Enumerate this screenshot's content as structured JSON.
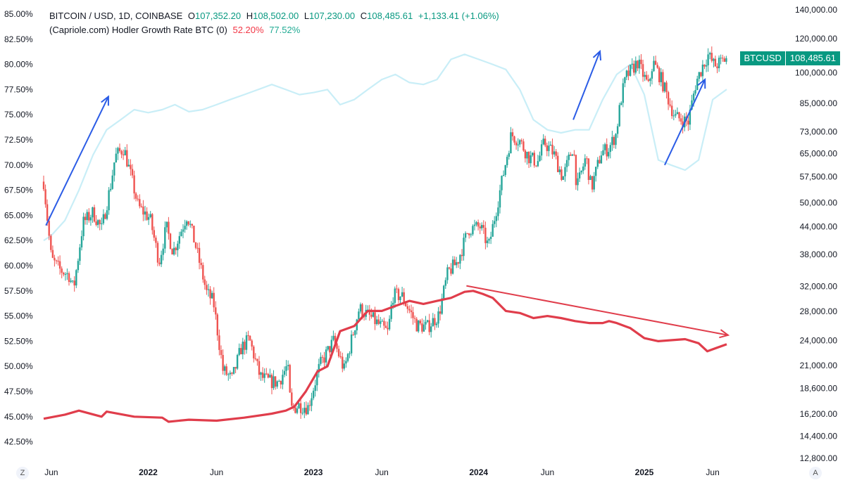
{
  "legend": {
    "symbol_line": "BITCOIN / USD, 1D, COINBASE",
    "open_label": "O",
    "open": "107,352.20",
    "high_label": "H",
    "high": "108,502.00",
    "low_label": "L",
    "low": "107,230.00",
    "close_label": "C",
    "close": "108,485.61",
    "change": "+1,133.41 (+1.06%)",
    "indicator_line": "(Capriole.com) Hodler Growth Rate BTC (0)",
    "indicator_val1": "52.20%",
    "indicator_val2": "77.52%"
  },
  "price_badge": {
    "symbol": "BTCUSD",
    "price": "108,485.61"
  },
  "corner_left": "Z",
  "corner_right": "A",
  "colors": {
    "candle_up": "#26a69a",
    "candle_down": "#ef5350",
    "growth_line": "#e03d4b",
    "secondary_line": "#c9eef7",
    "arrow_blue": "#2b5ce6",
    "arrow_red": "#e03d4b"
  },
  "chart_data": {
    "type": "line",
    "title": "",
    "left_axis": {
      "unit": "%",
      "range": [
        41.5,
        86
      ],
      "ticks": [
        "85.00%",
        "82.50%",
        "80.00%",
        "77.50%",
        "75.00%",
        "72.50%",
        "70.00%",
        "67.50%",
        "65.00%",
        "62.50%",
        "60.00%",
        "57.50%",
        "55.00%",
        "52.50%",
        "50.00%",
        "47.50%",
        "45.00%",
        "42.50%"
      ]
    },
    "right_axis": {
      "scale": "log",
      "range": [
        12800,
        140000
      ],
      "ticks": [
        "140,000.00",
        "120,000.00",
        "100,000.00",
        "85,000.00",
        "73,000.00",
        "65,000.00",
        "57,500.00",
        "50,000.00",
        "44,000.00",
        "38,000.00",
        "32,000.00",
        "28,000.00",
        "24,000.00",
        "21,000.00",
        "18,600.00",
        "16,200.00",
        "14,400.00",
        "12,800.00"
      ]
    },
    "x_axis": {
      "ticks": [
        {
          "label": "Jun",
          "date": "2021-06-01",
          "year": false
        },
        {
          "label": "2022",
          "date": "2022-01-01",
          "year": true
        },
        {
          "label": "Jun",
          "date": "2022-06-01",
          "year": false
        },
        {
          "label": "2023",
          "date": "2023-01-01",
          "year": true
        },
        {
          "label": "Jun",
          "date": "2023-06-01",
          "year": false
        },
        {
          "label": "2024",
          "date": "2024-01-01",
          "year": true
        },
        {
          "label": "Jun",
          "date": "2024-06-01",
          "year": false
        },
        {
          "label": "2025",
          "date": "2025-01-01",
          "year": true
        },
        {
          "label": "Jun",
          "date": "2025-06-01",
          "year": false
        }
      ]
    },
    "series": [
      {
        "name": "BITCOIN / USD",
        "axis": "right",
        "style": "candles",
        "x": [
          "2021-05-15",
          "2021-06-01",
          "2021-06-20",
          "2021-07-10",
          "2021-07-20",
          "2021-08-10",
          "2021-09-01",
          "2021-09-20",
          "2021-10-10",
          "2021-10-20",
          "2021-11-08",
          "2021-11-25",
          "2021-12-10",
          "2022-01-05",
          "2022-01-25",
          "2022-02-10",
          "2022-02-25",
          "2022-03-28",
          "2022-04-15",
          "2022-05-10",
          "2022-05-25",
          "2022-06-15",
          "2022-07-05",
          "2022-07-25",
          "2022-08-12",
          "2022-09-05",
          "2022-09-25",
          "2022-10-15",
          "2022-11-05",
          "2022-11-12",
          "2022-12-01",
          "2022-12-20",
          "2023-01-15",
          "2023-02-15",
          "2023-03-10",
          "2023-04-12",
          "2023-05-10",
          "2023-06-15",
          "2023-06-25",
          "2023-07-15",
          "2023-08-18",
          "2023-09-10",
          "2023-10-05",
          "2023-10-25",
          "2023-11-15",
          "2023-12-10",
          "2024-01-05",
          "2024-01-23",
          "2024-02-15",
          "2024-03-13",
          "2024-04-01",
          "2024-04-20",
          "2024-05-10",
          "2024-05-25",
          "2024-06-15",
          "2024-07-05",
          "2024-07-28",
          "2024-08-05",
          "2024-08-25",
          "2024-09-06",
          "2024-09-28",
          "2024-10-15",
          "2024-10-30",
          "2024-11-12",
          "2024-11-22",
          "2024-12-17",
          "2025-01-10",
          "2025-01-20",
          "2025-02-05",
          "2025-02-28",
          "2025-03-10",
          "2025-04-08",
          "2025-04-25",
          "2025-05-10",
          "2025-05-22",
          "2025-06-05",
          "2025-06-20",
          "2025-07-02"
        ],
        "values": [
          56000,
          37000,
          35000,
          34000,
          31500,
          45000,
          47500,
          43500,
          55000,
          64000,
          67000,
          57000,
          49000,
          46000,
          36500,
          44000,
          38500,
          47000,
          40000,
          31000,
          29500,
          20500,
          19500,
          23000,
          24200,
          19800,
          19300,
          19200,
          21000,
          16600,
          17000,
          16800,
          21000,
          24000,
          20500,
          28500,
          27000,
          25000,
          30500,
          30500,
          26000,
          25800,
          27500,
          34500,
          36500,
          43500,
          44000,
          39500,
          52000,
          72000,
          69500,
          64000,
          62000,
          69000,
          65000,
          57000,
          68000,
          54000,
          64000,
          54000,
          65500,
          67000,
          72000,
          89000,
          98000,
          106000,
          93000,
          106000,
          98000,
          84000,
          79000,
          77000,
          95000,
          104000,
          110000,
          104000,
          106000,
          108485.61
        ]
      },
      {
        "name": "Hodler Growth Rate",
        "axis": "left",
        "style": "thick-line",
        "x": [
          "2021-05-15",
          "2021-07-01",
          "2021-08-01",
          "2021-09-20",
          "2021-10-01",
          "2021-12-01",
          "2022-02-01",
          "2022-02-15",
          "2022-04-01",
          "2022-06-01",
          "2022-08-01",
          "2022-10-01",
          "2022-11-01",
          "2022-11-20",
          "2022-12-15",
          "2023-01-10",
          "2023-02-01",
          "2023-03-01",
          "2023-04-01",
          "2023-05-01",
          "2023-06-01",
          "2023-07-01",
          "2023-08-01",
          "2023-09-01",
          "2023-10-01",
          "2023-11-01",
          "2023-12-01",
          "2023-12-20",
          "2024-01-10",
          "2024-02-01",
          "2024-03-01",
          "2024-04-01",
          "2024-05-01",
          "2024-06-01",
          "2024-07-01",
          "2024-08-01",
          "2024-09-01",
          "2024-10-01",
          "2024-10-15",
          "2024-11-01",
          "2024-12-01",
          "2025-01-01",
          "2025-02-01",
          "2025-03-01",
          "2025-04-01",
          "2025-05-01",
          "2025-05-20",
          "2025-07-02"
        ],
        "values": [
          44.8,
          45.2,
          45.6,
          45.0,
          45.5,
          45.0,
          44.9,
          44.5,
          44.7,
          44.6,
          44.9,
          45.3,
          45.6,
          46.0,
          47.5,
          49.5,
          50.0,
          53.5,
          54.0,
          55.5,
          55.5,
          56.0,
          56.5,
          56.2,
          56.5,
          56.8,
          57.4,
          57.5,
          57.2,
          56.8,
          55.5,
          55.3,
          54.8,
          55.0,
          54.8,
          54.5,
          54.3,
          54.3,
          54.5,
          54.3,
          53.8,
          52.8,
          52.5,
          52.6,
          52.7,
          52.3,
          51.5,
          52.2
        ]
      },
      {
        "name": "Hodler Growth Rate (secondary)",
        "axis": "left",
        "style": "thin-line",
        "x": [
          "2021-05-15",
          "2021-06-01",
          "2021-07-01",
          "2021-08-01",
          "2021-09-01",
          "2021-10-01",
          "2021-11-01",
          "2021-12-01",
          "2022-01-01",
          "2022-02-01",
          "2022-03-01",
          "2022-04-01",
          "2022-05-01",
          "2022-06-01",
          "2022-07-01",
          "2022-08-01",
          "2022-09-01",
          "2022-10-01",
          "2022-11-01",
          "2022-12-01",
          "2023-01-01",
          "2023-02-01",
          "2023-03-01",
          "2023-04-01",
          "2023-05-01",
          "2023-06-01",
          "2023-07-01",
          "2023-08-01",
          "2023-09-01",
          "2023-10-01",
          "2023-11-01",
          "2023-12-01",
          "2024-01-01",
          "2024-02-01",
          "2024-03-01",
          "2024-04-01",
          "2024-05-01",
          "2024-06-01",
          "2024-07-01",
          "2024-08-01",
          "2024-09-01",
          "2024-10-01",
          "2024-11-01",
          "2024-12-01",
          "2025-01-01",
          "2025-02-01",
          "2025-03-01",
          "2025-04-01",
          "2025-05-01",
          "2025-06-01",
          "2025-07-02"
        ],
        "values": [
          62.5,
          63.0,
          64.5,
          67.5,
          71.0,
          73.5,
          74.5,
          75.5,
          75.2,
          75.5,
          76.0,
          75.3,
          75.5,
          76.0,
          76.5,
          77.0,
          77.5,
          78.0,
          77.5,
          77.0,
          77.2,
          77.5,
          76.0,
          76.5,
          77.5,
          78.5,
          79.0,
          78.2,
          78.0,
          78.5,
          80.5,
          81.0,
          80.5,
          80.0,
          79.5,
          77.5,
          74.5,
          73.5,
          73.2,
          73.5,
          73.5,
          76.5,
          79.0,
          80.0,
          77.0,
          70.5,
          70.0,
          69.5,
          70.5,
          76.5,
          77.52
        ]
      }
    ],
    "annotations": [
      {
        "type": "arrow",
        "color": "blue",
        "from": {
          "date": "2021-05-20",
          "value": 64.0
        },
        "to": {
          "date": "2021-10-05",
          "value": 76.8
        }
      },
      {
        "type": "arrow",
        "color": "blue",
        "from": {
          "date": "2024-07-28",
          "value": 74.5
        },
        "to": {
          "date": "2024-09-25",
          "value": 81.3
        }
      },
      {
        "type": "arrow",
        "color": "blue",
        "from": {
          "date": "2025-02-15",
          "value": 70.0
        },
        "to": {
          "date": "2025-05-15",
          "value": 78.5
        }
      },
      {
        "type": "arrow",
        "color": "red",
        "from": {
          "date": "2023-12-05",
          "value": 58.0
        },
        "to": {
          "date": "2025-07-05",
          "value": 53.1
        }
      }
    ],
    "grid": false,
    "legend_position": "top-left"
  }
}
